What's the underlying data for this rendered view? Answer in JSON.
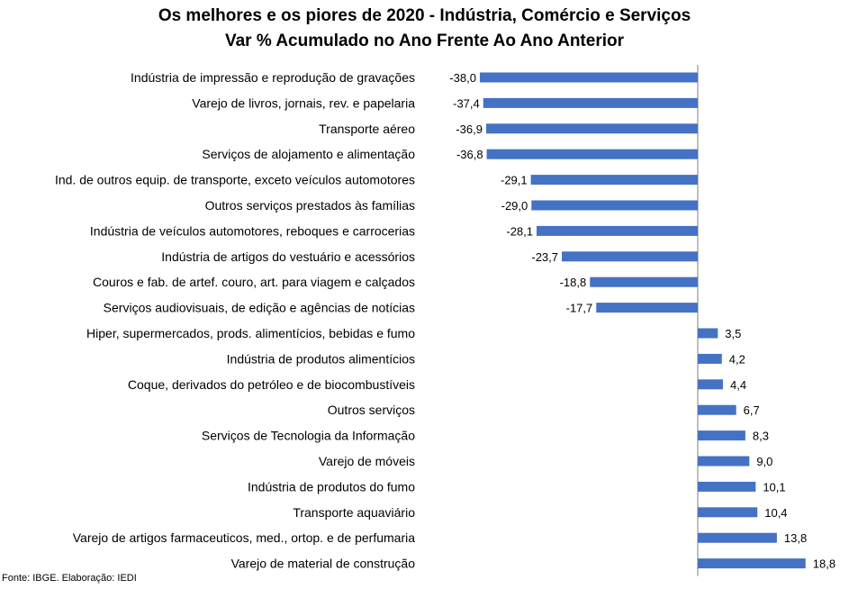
{
  "title_line1": "Os melhores e os piores de 2020 - Indústria, Comércio e Serviços",
  "title_line2": "Var % Acumulado no Ano Frente Ao Ano Anterior",
  "source": "Fonte: IBGE. Elaboração: IEDI",
  "bar_color": "#4472C4",
  "chart_data": {
    "type": "bar",
    "orientation": "horizontal",
    "title": "Os melhores e os piores de 2020 - Indústria, Comércio e Serviços",
    "subtitle": "Var % Acumulado no Ano Frente Ao Ano Anterior",
    "categories": [
      "Indústria de impressão e reprodução de gravações",
      "Varejo de livros, jornais, rev. e papelaria",
      "Transporte aéreo",
      "Serviços de alojamento e alimentação",
      "Ind. de outros equip. de transporte, exceto veículos automotores",
      "Outros serviços prestados às famílias",
      "Indústria de veículos automotores, reboques e carrocerias",
      "Indústria de artigos do vestuário e acessórios",
      "Couros e fab. de artef. couro, art. para viagem e calçados",
      "Serviços audiovisuais, de edição e agências de notícias",
      "Hiper, supermercados, prods. alimentícios, bebidas e fumo",
      "Indústria de produtos alimentícios",
      "Coque, derivados do petróleo e de biocombustíveis",
      "Outros serviços",
      "Serviços de Tecnologia da Informação",
      "Varejo de móveis",
      "Indústria de produtos do fumo",
      "Transporte aquaviário",
      "Varejo de artigos farmaceuticos, med., ortop. e de perfumaria",
      "Varejo de material de construção"
    ],
    "values": [
      -38.0,
      -37.4,
      -36.9,
      -36.8,
      -29.1,
      -29.0,
      -28.1,
      -23.7,
      -18.8,
      -17.7,
      3.5,
      4.2,
      4.4,
      6.7,
      8.3,
      9.0,
      10.1,
      10.4,
      13.8,
      18.8
    ],
    "labels": [
      "-38,0",
      "-37,4",
      "-36,9",
      "-36,8",
      "-29,1",
      "-29,0",
      "-28,1",
      "-23,7",
      "-18,8",
      "-17,7",
      "3,5",
      "4,2",
      "4,4",
      "6,7",
      "8,3",
      "9,0",
      "10,1",
      "10,4",
      "13,8",
      "18,8"
    ],
    "grid": false,
    "legend": "none"
  }
}
